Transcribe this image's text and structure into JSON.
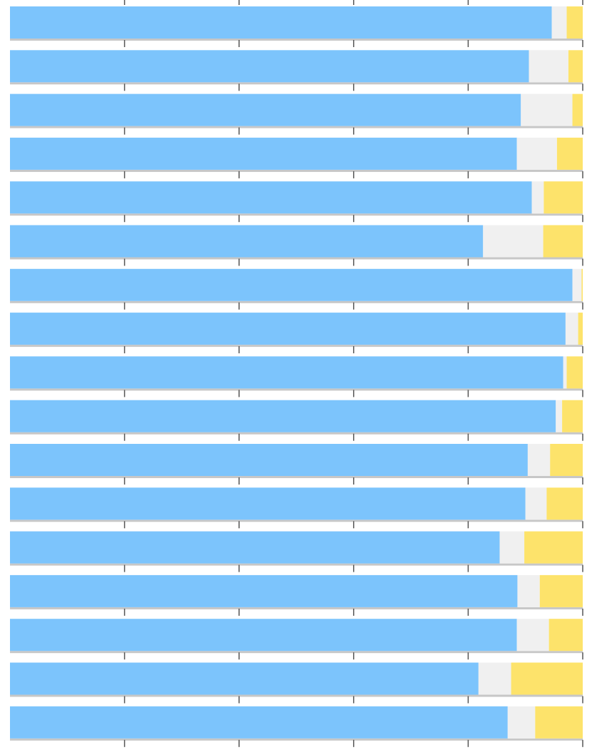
{
  "chart_data": {
    "type": "bar",
    "orientation": "horizontal",
    "stacked": true,
    "normalized": true,
    "xlim": [
      0,
      100
    ],
    "grid": false,
    "legend": "none",
    "colors": {
      "blue": "#7cc4fc",
      "gray": "#f0f0f0",
      "yellow": "#fde36b",
      "tick": "#555555",
      "shadow": "#999999"
    },
    "series": [
      {
        "name": "",
        "color": "blue",
        "values": [
          94.6,
          90.6,
          89.2,
          88.5,
          91.1,
          82.6,
          98.2,
          97.0,
          96.6,
          95.3,
          90.4,
          90.0,
          85.5,
          88.6,
          88.5,
          81.8,
          86.9
        ]
      },
      {
        "name": "",
        "color": "gray",
        "values": [
          2.6,
          6.9,
          9.0,
          7.0,
          2.1,
          10.5,
          1.6,
          2.2,
          0.6,
          1.1,
          3.9,
          3.7,
          4.3,
          3.9,
          5.6,
          5.7,
          4.8
        ]
      },
      {
        "name": "",
        "color": "yellow",
        "values": [
          2.8,
          2.5,
          1.8,
          4.5,
          6.8,
          6.9,
          0.2,
          0.8,
          2.8,
          3.6,
          5.7,
          6.3,
          10.2,
          7.5,
          5.9,
          12.5,
          8.3
        ]
      }
    ]
  }
}
